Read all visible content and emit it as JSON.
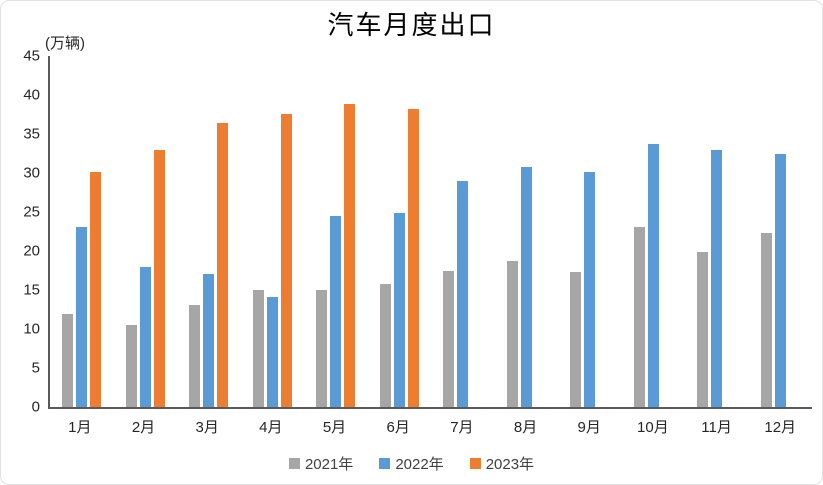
{
  "title": "汽车月度出口",
  "unit_label": "(万辆)",
  "chart_data": {
    "type": "bar",
    "title": "汽车月度出口",
    "ylabel": "(万辆)",
    "xlabel": "",
    "ylim": [
      0,
      45
    ],
    "ytick_step": 5,
    "grid": false,
    "legend_position": "bottom",
    "categories": [
      "1月",
      "2月",
      "3月",
      "4月",
      "5月",
      "6月",
      "7月",
      "8月",
      "9月",
      "10月",
      "11月",
      "12月"
    ],
    "series": [
      {
        "name": "2021年",
        "color": "#A6A6A6",
        "values": [
          11.9,
          10.5,
          13.1,
          15.0,
          15.0,
          15.8,
          17.4,
          18.7,
          17.3,
          23.1,
          19.9,
          22.3
        ]
      },
      {
        "name": "2022年",
        "color": "#5B9BD5",
        "values": [
          23.1,
          18.0,
          17.0,
          14.1,
          24.5,
          24.9,
          29.0,
          30.8,
          30.1,
          33.7,
          32.9,
          32.4
        ]
      },
      {
        "name": "2023年",
        "color": "#ED7D31",
        "values": [
          30.1,
          32.9,
          36.4,
          37.6,
          38.9,
          38.2,
          null,
          null,
          null,
          null,
          null,
          null
        ]
      }
    ]
  },
  "style": {
    "axis_color": "#595959",
    "text_color": "#262626",
    "card_border_color": "#e2e2e2"
  }
}
